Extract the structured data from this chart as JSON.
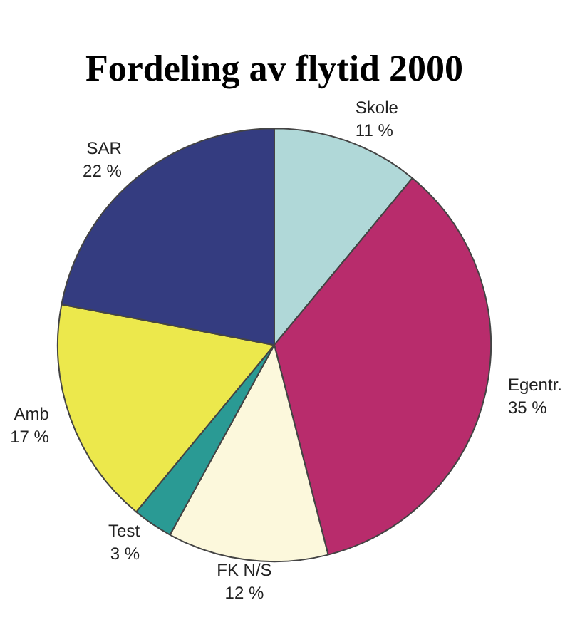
{
  "chart_data": {
    "type": "pie",
    "title": "Fordeling av flytid 2000",
    "categories": [
      "Skole",
      "Egentr.",
      "FK N/S",
      "Test",
      "Amb",
      "SAR"
    ],
    "values": [
      11,
      35,
      12,
      3,
      17,
      22
    ],
    "value_labels": [
      "11 %",
      "35 %",
      "12 %",
      "3 %",
      "17 %",
      "22 %"
    ],
    "colors": [
      "#b0d8d8",
      "#b82c6c",
      "#fcf8dc",
      "#2a9a94",
      "#ece84c",
      "#343c80"
    ],
    "legend": false
  }
}
